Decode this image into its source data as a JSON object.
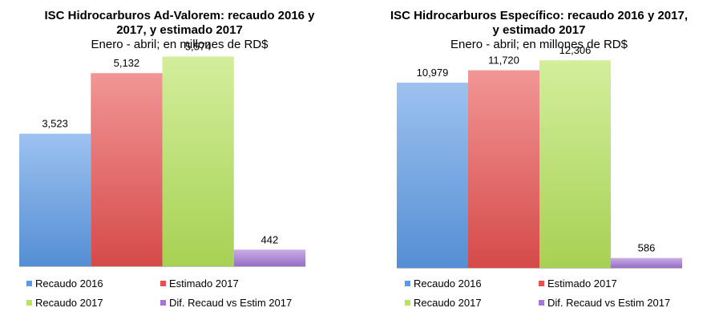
{
  "colors": {
    "recaudo_2016": "#5b9ae6",
    "estimado_2017": "#e8504f",
    "recaudo_2017": "#b6e35a",
    "dif": "#a477d6"
  },
  "chart_data": [
    {
      "type": "bar",
      "title_lines": [
        "ISC Hidrocarburos Ad-Valorem: recaudo 2016 y",
        "2017, y estimado 2017"
      ],
      "subtitle": "Enero - abril; en millones de RD$",
      "xlabel": "",
      "ylabel": "",
      "ylim": [
        0,
        6500
      ],
      "grid": false,
      "legend_position": "bottom",
      "categories": [
        "Recaudo 2016",
        "Estimado 2017",
        "Recaudo 2017",
        "Dif. Recaud vs Estim 2017"
      ],
      "values": [
        3523,
        5132,
        5574,
        442
      ],
      "value_labels": [
        "3,523",
        "5,132",
        "5,574",
        "442"
      ]
    },
    {
      "type": "bar",
      "title_lines": [
        "ISC Hidrocarburos Específico: recaudo 2016 y 2017,",
        "y estimado 2017"
      ],
      "subtitle": "Enero - abril; en millones de RD$",
      "xlabel": "",
      "ylabel": "",
      "ylim": [
        0,
        14600
      ],
      "grid": false,
      "legend_position": "bottom",
      "categories": [
        "Recaudo 2016",
        "Estimado 2017",
        "Recaudo 2017",
        "Dif. Recaud vs Estim 2017"
      ],
      "values": [
        10979,
        11720,
        12306,
        586
      ],
      "value_labels": [
        "10,979",
        "11,720",
        "12,306",
        "586"
      ]
    }
  ]
}
